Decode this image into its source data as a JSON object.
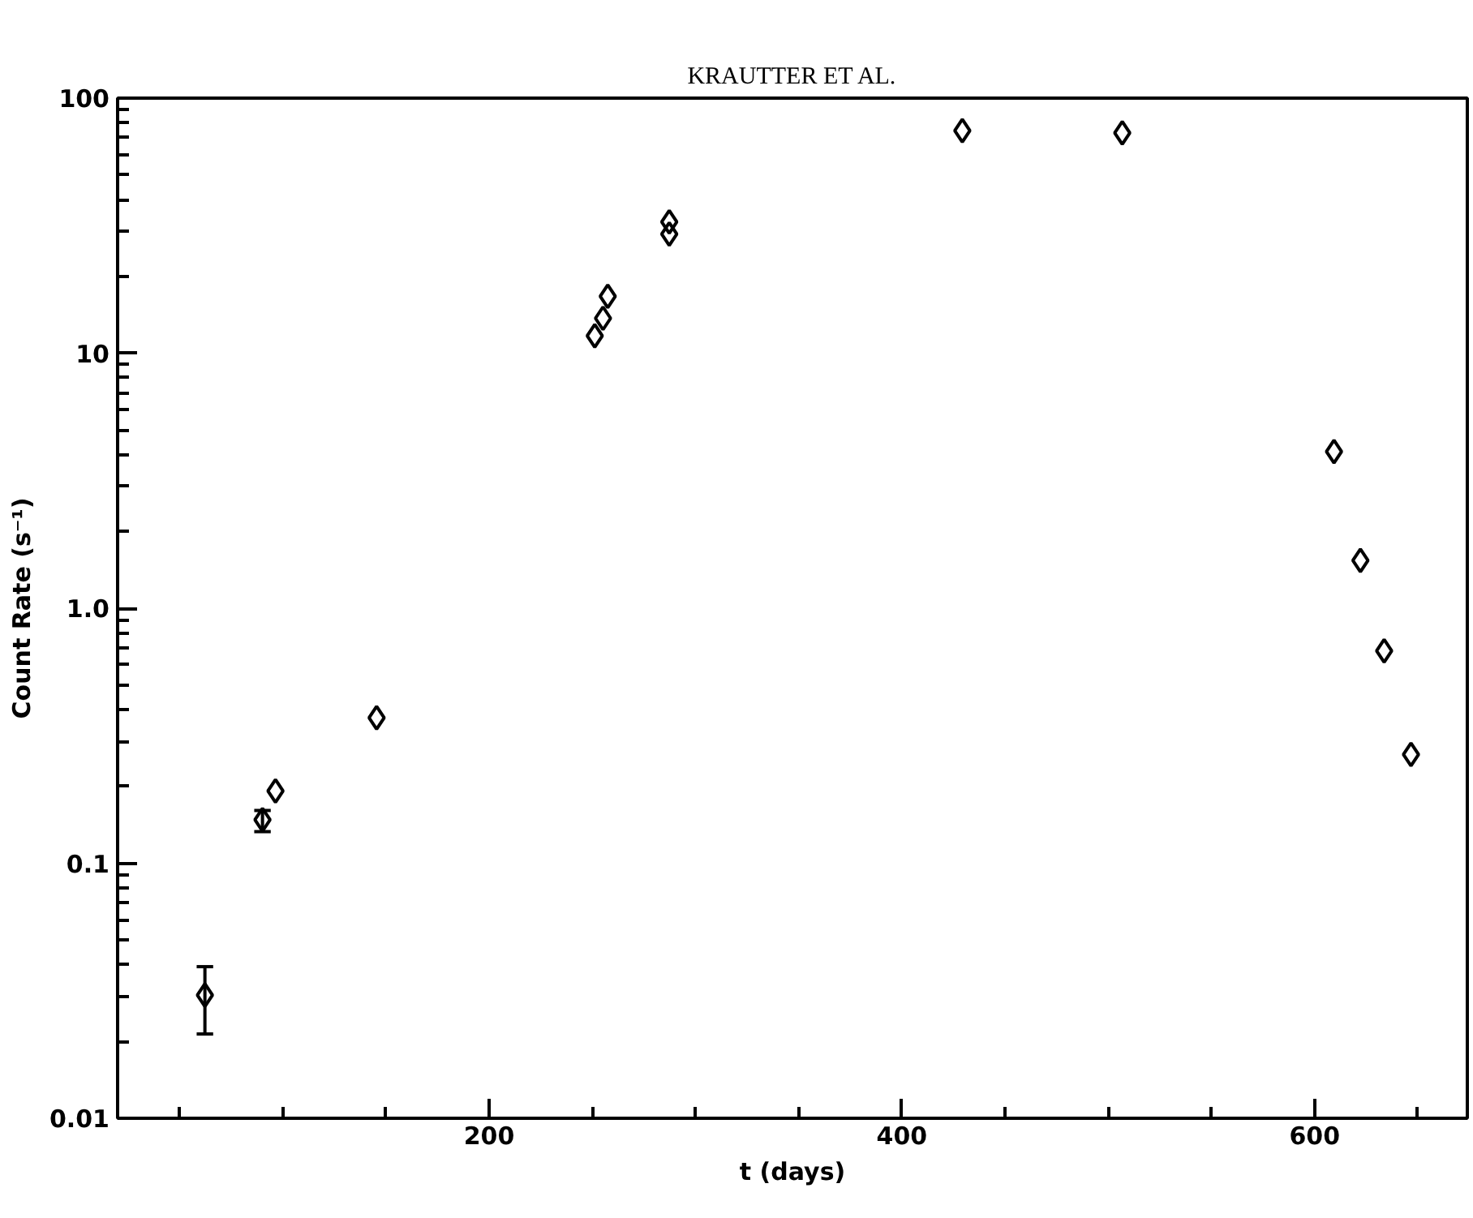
{
  "chart_data": {
    "type": "scatter",
    "title": "KRAUTTER ET AL.",
    "xlabel": "t (days)",
    "ylabel": "Count Rate (s⁻¹)",
    "x": [
      62.3,
      90.2,
      96.5,
      145.5,
      251.2,
      255.2,
      257.5,
      287.3,
      287.3,
      429.3,
      506.8,
      609.4,
      622.2,
      633.7,
      646.7
    ],
    "values": [
      0.0304,
      0.148,
      0.192,
      0.372,
      11.7,
      13.7,
      16.7,
      32.7,
      29.3,
      74.6,
      73.1,
      4.11,
      1.54,
      0.68,
      0.267
    ],
    "errors": [
      [
        0.0214,
        0.0393
      ],
      [
        0.133,
        0.161
      ],
      null,
      null,
      null,
      null,
      null,
      null,
      null,
      null,
      null,
      null,
      null,
      null,
      null
    ],
    "color": "#000000",
    "marker": "diamond",
    "log": "y",
    "grid": false,
    "xlim": [
      20,
      674
    ],
    "ylim": [
      0.01,
      100
    ],
    "xticks": [
      {
        "value": 50,
        "label": null
      },
      {
        "value": 100,
        "label": null
      },
      {
        "value": 150,
        "label": null
      },
      200,
      {
        "value": 250,
        "label": null
      },
      {
        "value": 300,
        "label": null
      },
      {
        "value": 350,
        "label": null
      },
      400,
      {
        "value": 450,
        "label": null
      },
      {
        "value": 500,
        "label": null
      },
      {
        "value": 550,
        "label": null
      },
      600,
      {
        "value": 650,
        "label": null
      }
    ],
    "yticks": [
      {
        "value": 0.01,
        "label": "0.01"
      },
      {
        "value": 0.1,
        "label": "0.1"
      },
      {
        "value": 1,
        "label": "1.0"
      },
      10,
      100
    ]
  }
}
